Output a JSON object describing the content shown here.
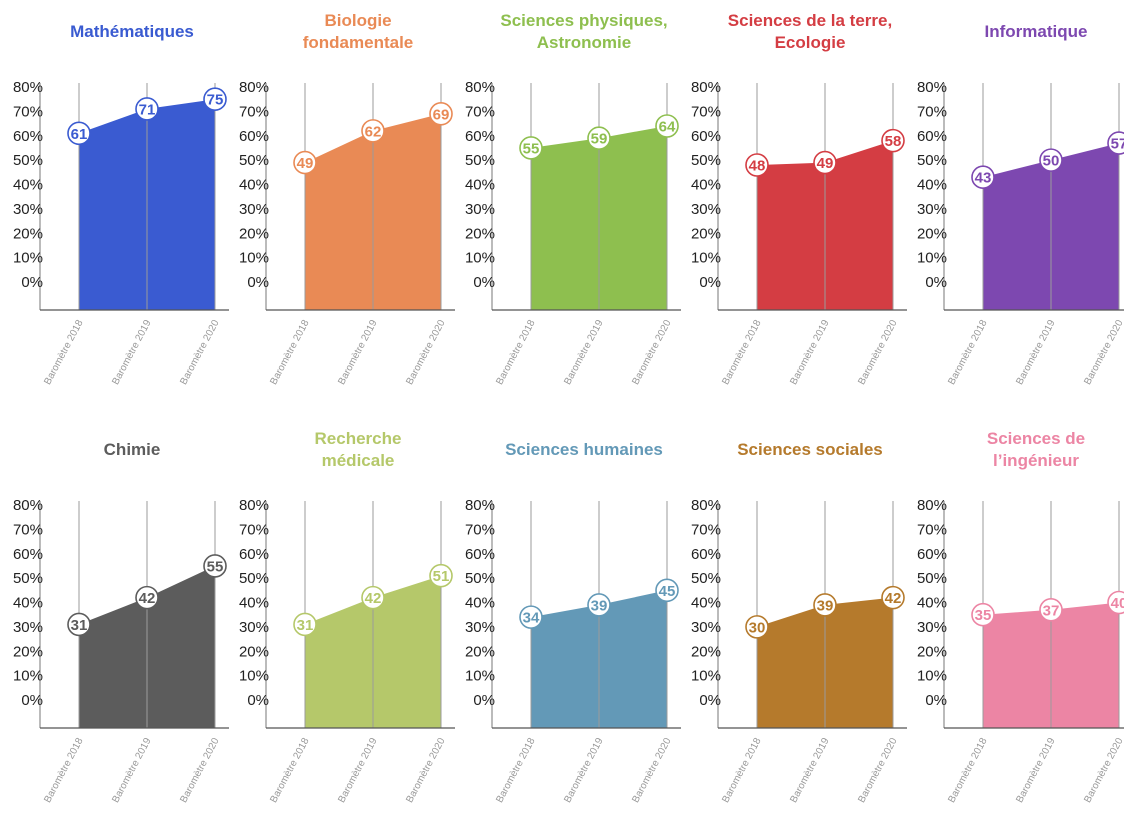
{
  "y_ticks": [
    "80%",
    "70%",
    "60%",
    "50%",
    "40%",
    "30%",
    "20%",
    "10%",
    "0%"
  ],
  "chart_data": [
    {
      "type": "area",
      "title": "Mathématiques",
      "color": "#3a5bd1",
      "categories": [
        "Baromètre 2018",
        "Baromètre 2019",
        "Baromètre 2020"
      ],
      "values": [
        61,
        71,
        75
      ],
      "ylim": [
        0,
        80
      ],
      "grid": false
    },
    {
      "type": "area",
      "title": "Biologie\nfondamentale",
      "color": "#e98a55",
      "categories": [
        "Baromètre 2018",
        "Baromètre 2019",
        "Baromètre 2020"
      ],
      "values": [
        49,
        62,
        69
      ],
      "ylim": [
        0,
        80
      ],
      "grid": false
    },
    {
      "type": "area",
      "title": "Sciences physiques,\nAstronomie",
      "color": "#8ebf4f",
      "categories": [
        "Baromètre 2018",
        "Baromètre 2019",
        "Baromètre 2020"
      ],
      "values": [
        55,
        59,
        64
      ],
      "ylim": [
        0,
        80
      ],
      "grid": false
    },
    {
      "type": "area",
      "title": "Sciences de la terre,\nEcologie",
      "color": "#d43d43",
      "categories": [
        "Baromètre 2018",
        "Baromètre 2019",
        "Baromètre 2020"
      ],
      "values": [
        48,
        49,
        58
      ],
      "ylim": [
        0,
        80
      ],
      "grid": false
    },
    {
      "type": "area",
      "title": "Informatique",
      "color": "#7d48b0",
      "categories": [
        "Baromètre 2018",
        "Baromètre 2019",
        "Baromètre 2020"
      ],
      "values": [
        43,
        50,
        57
      ],
      "ylim": [
        0,
        80
      ],
      "grid": false
    },
    {
      "type": "area",
      "title": "Chimie",
      "color": "#5c5c5c",
      "categories": [
        "Baromètre 2018",
        "Baromètre 2019",
        "Baromètre 2020"
      ],
      "values": [
        31,
        42,
        55
      ],
      "ylim": [
        0,
        80
      ],
      "grid": false
    },
    {
      "type": "area",
      "title": "Recherche\nmédicale",
      "color": "#b5c86a",
      "categories": [
        "Baromètre 2018",
        "Baromètre 2019",
        "Baromètre 2020"
      ],
      "values": [
        31,
        42,
        51
      ],
      "ylim": [
        0,
        80
      ],
      "grid": false
    },
    {
      "type": "area",
      "title": "Sciences humaines",
      "color": "#6399b7",
      "categories": [
        "Baromètre 2018",
        "Baromètre 2019",
        "Baromètre 2020"
      ],
      "values": [
        34,
        39,
        45
      ],
      "ylim": [
        0,
        80
      ],
      "grid": false
    },
    {
      "type": "area",
      "title": "Sciences sociales",
      "color": "#b57a2c",
      "categories": [
        "Baromètre 2018",
        "Baromètre 2019",
        "Baromètre 2020"
      ],
      "values": [
        30,
        39,
        42
      ],
      "ylim": [
        0,
        80
      ],
      "grid": false
    },
    {
      "type": "area",
      "title": "Sciences de\nl’ingénieur",
      "color": "#ec85a4",
      "categories": [
        "Baromètre 2018",
        "Baromètre 2019",
        "Baromètre 2020"
      ],
      "values": [
        35,
        37,
        40
      ],
      "ylim": [
        0,
        80
      ],
      "grid": false
    }
  ]
}
